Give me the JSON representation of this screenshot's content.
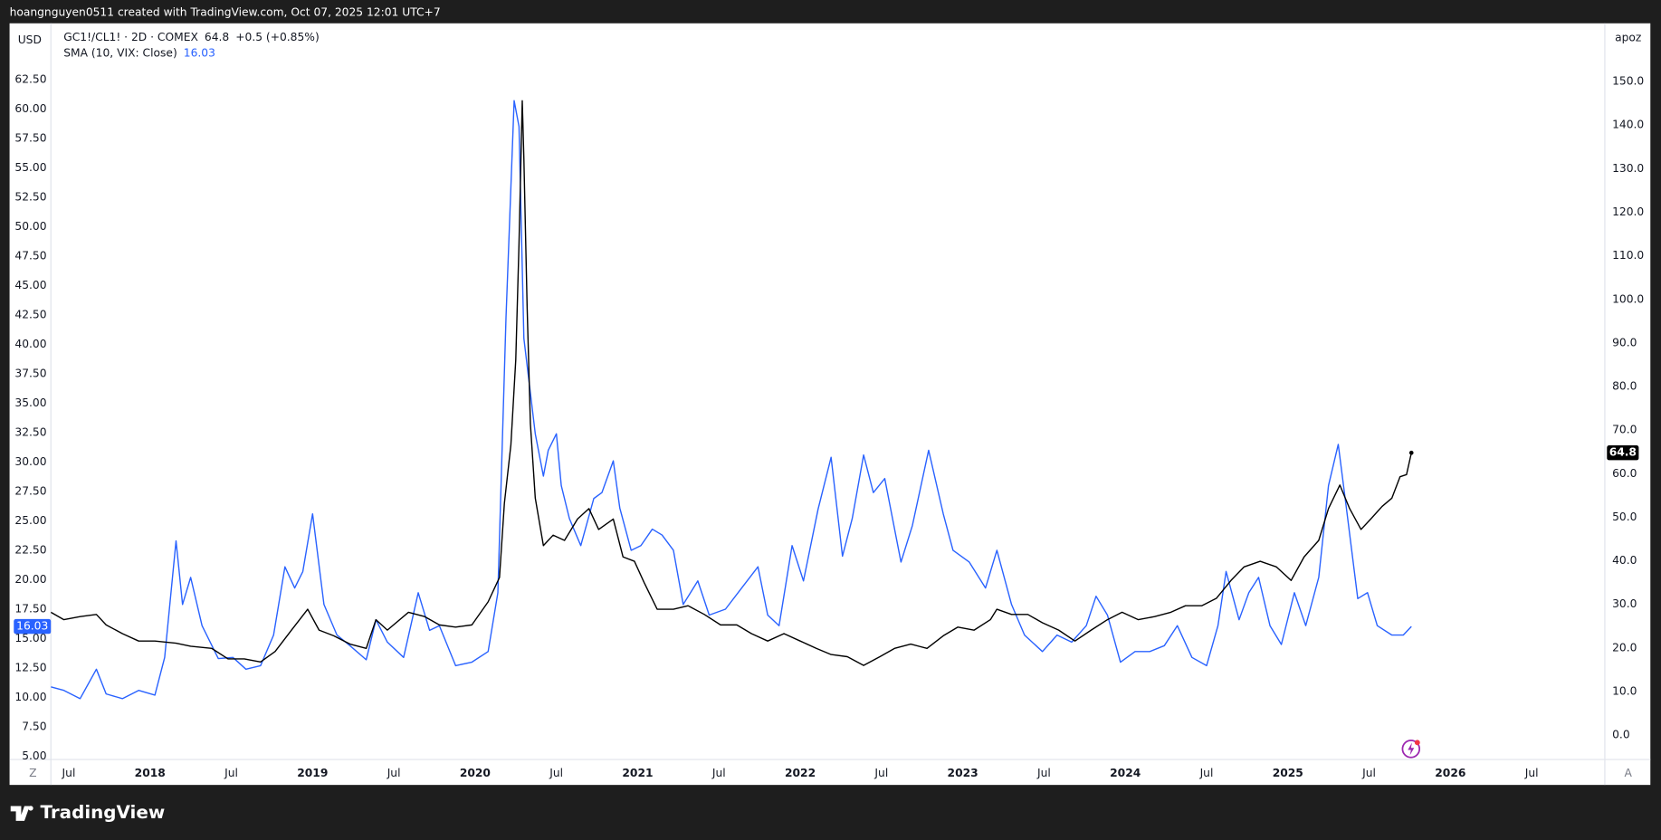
{
  "header": {
    "title": "hoangnguyen0511 created with TradingView.com, Oct 07, 2025 12:01 UTC+7"
  },
  "controls": {
    "left": "Z",
    "right": "A"
  },
  "footer": {
    "brand": "TradingView"
  },
  "chart_data": {
    "type": "line",
    "y_label": "USD",
    "y2_label": "apoz",
    "change_label": "+0.5 (+0.85%)",
    "grid": false,
    "xlim": [
      2017.39,
      2026.95
    ],
    "xticks": [
      {
        "value": 2017.5,
        "label": "Jul"
      },
      2018,
      {
        "value": 2018.5,
        "label": "Jul"
      },
      2019,
      {
        "value": 2019.5,
        "label": "Jul"
      },
      2020,
      {
        "value": 2020.5,
        "label": "Jul"
      },
      2021,
      {
        "value": 2021.5,
        "label": "Jul"
      },
      2022,
      {
        "value": 2022.5,
        "label": "Jul"
      },
      2023,
      {
        "value": 2023.5,
        "label": "Jul"
      },
      2024,
      {
        "value": 2024.5,
        "label": "Jul"
      },
      2025,
      {
        "value": 2025.5,
        "label": "Jul"
      },
      2026,
      {
        "value": 2026.5,
        "label": "Jul"
      }
    ],
    "ylim": [
      4.73,
      67.27
    ],
    "yticks": [
      {
        "value": 5,
        "label": "5.00"
      },
      {
        "value": 7.5,
        "label": "7.50"
      },
      {
        "value": 10,
        "label": "10.00"
      },
      {
        "value": 12.5,
        "label": "12.50"
      },
      {
        "value": 15,
        "label": "15.00"
      },
      {
        "value": 17.5,
        "label": "17.50"
      },
      {
        "value": 20,
        "label": "20.00"
      },
      {
        "value": 22.5,
        "label": "22.50"
      },
      {
        "value": 25,
        "label": "25.00"
      },
      {
        "value": 27.5,
        "label": "27.50"
      },
      {
        "value": 30,
        "label": "30.00"
      },
      {
        "value": 32.5,
        "label": "32.50"
      },
      {
        "value": 35,
        "label": "35.00"
      },
      {
        "value": 37.5,
        "label": "37.50"
      },
      {
        "value": 40,
        "label": "40.00"
      },
      {
        "value": 42.5,
        "label": "42.50"
      },
      {
        "value": 45,
        "label": "45.00"
      },
      {
        "value": 47.5,
        "label": "47.50"
      },
      {
        "value": 50,
        "label": "50.00"
      },
      {
        "value": 52.5,
        "label": "52.50"
      },
      {
        "value": 55,
        "label": "55.00"
      },
      {
        "value": 57.5,
        "label": "57.50"
      },
      {
        "value": 60,
        "label": "60.00"
      },
      {
        "value": 62.5,
        "label": "62.50"
      }
    ],
    "y2lim": [
      -5.59,
      163.37
    ],
    "y2ticks": [
      {
        "value": 0,
        "label": "0.0"
      },
      {
        "value": 10,
        "label": "10.0"
      },
      {
        "value": 20,
        "label": "20.0"
      },
      {
        "value": 30,
        "label": "30.0"
      },
      {
        "value": 40,
        "label": "40.0"
      },
      {
        "value": 50,
        "label": "50.0"
      },
      {
        "value": 60,
        "label": "60.0"
      },
      {
        "value": 70,
        "label": "70.0"
      },
      {
        "value": 80,
        "label": "80.0"
      },
      {
        "value": 90,
        "label": "90.0"
      },
      {
        "value": 100,
        "label": "100.0"
      },
      {
        "value": 110,
        "label": "110.0"
      },
      {
        "value": 120,
        "label": "120.0"
      },
      {
        "value": 130,
        "label": "130.0"
      },
      {
        "value": 140,
        "label": "140.0"
      },
      {
        "value": 150,
        "label": "150.0"
      }
    ],
    "series": [
      {
        "name": "SMA (10, VIX: Close)",
        "color": "#2962ff",
        "axis": "y",
        "x": [
          2017.39,
          2017.47,
          2017.57,
          2017.67,
          2017.73,
          2017.83,
          2017.93,
          2018.03,
          2018.09,
          2018.16,
          2018.2,
          2018.25,
          2018.32,
          2018.42,
          2018.51,
          2018.59,
          2018.68,
          2018.76,
          2018.83,
          2018.89,
          2018.94,
          2019.0,
          2019.07,
          2019.15,
          2019.23,
          2019.33,
          2019.39,
          2019.46,
          2019.56,
          2019.65,
          2019.72,
          2019.78,
          2019.88,
          2019.98,
          2020.08,
          2020.14,
          2020.19,
          2020.24,
          2020.27,
          2020.3,
          2020.37,
          2020.42,
          2020.45,
          2020.5,
          2020.53,
          2020.58,
          2020.65,
          2020.73,
          2020.78,
          2020.85,
          2020.89,
          2020.96,
          2021.02,
          2021.09,
          2021.15,
          2021.22,
          2021.28,
          2021.37,
          2021.44,
          2021.54,
          2021.64,
          2021.74,
          2021.8,
          2021.87,
          2021.95,
          2022.02,
          2022.11,
          2022.19,
          2022.26,
          2022.32,
          2022.39,
          2022.45,
          2022.52,
          2022.62,
          2022.69,
          2022.79,
          2022.88,
          2022.94,
          2023.04,
          2023.14,
          2023.21,
          2023.3,
          2023.38,
          2023.49,
          2023.58,
          2023.67,
          2023.76,
          2023.82,
          2023.89,
          2023.97,
          2024.06,
          2024.15,
          2024.24,
          2024.32,
          2024.41,
          2024.5,
          2024.57,
          2024.62,
          2024.7,
          2024.76,
          2024.82,
          2024.89,
          2024.96,
          2025.04,
          2025.11,
          2025.19,
          2025.25,
          2025.31,
          2025.36,
          2025.43,
          2025.49,
          2025.55,
          2025.64,
          2025.71,
          2025.76
        ],
        "values": [
          10.9,
          10.6,
          9.9,
          12.4,
          10.3,
          9.9,
          10.6,
          10.2,
          13.4,
          23.3,
          17.9,
          20.2,
          16.1,
          13.3,
          13.4,
          12.4,
          12.7,
          15.3,
          21.1,
          19.3,
          20.7,
          25.6,
          17.9,
          15.3,
          14.4,
          13.2,
          16.6,
          14.7,
          13.4,
          18.9,
          15.7,
          16.1,
          12.7,
          13.0,
          13.9,
          18.9,
          42.3,
          60.7,
          58.5,
          40.5,
          32.4,
          28.8,
          31.0,
          32.4,
          28.0,
          25.2,
          22.9,
          26.9,
          27.4,
          30.1,
          26.1,
          22.5,
          22.9,
          24.3,
          23.8,
          22.5,
          17.9,
          19.9,
          17.0,
          17.5,
          19.3,
          21.1,
          17.0,
          16.1,
          22.9,
          19.9,
          26.0,
          30.4,
          22.0,
          25.2,
          30.6,
          27.4,
          28.6,
          21.5,
          24.6,
          31.0,
          25.6,
          22.5,
          21.5,
          19.3,
          22.5,
          17.9,
          15.3,
          13.9,
          15.3,
          14.7,
          16.1,
          18.6,
          17.0,
          13.0,
          13.9,
          13.9,
          14.4,
          16.1,
          13.4,
          12.7,
          16.1,
          20.7,
          16.6,
          18.9,
          20.2,
          16.1,
          14.5,
          18.9,
          16.1,
          20.2,
          28.0,
          31.5,
          26.1,
          18.4,
          18.9,
          16.1,
          15.3,
          15.3,
          16.03
        ]
      },
      {
        "name": "GC1!/CL1! · 2D · COMEX",
        "color": "#000000",
        "axis": "y2",
        "x": [
          2017.39,
          2017.47,
          2017.57,
          2017.67,
          2017.73,
          2017.83,
          2017.93,
          2018.03,
          2018.16,
          2018.25,
          2018.38,
          2018.48,
          2018.58,
          2018.68,
          2018.77,
          2018.87,
          2018.97,
          2019.04,
          2019.13,
          2019.23,
          2019.33,
          2019.39,
          2019.46,
          2019.59,
          2019.69,
          2019.78,
          2019.88,
          2019.98,
          2020.08,
          2020.15,
          2020.18,
          2020.22,
          2020.25,
          2020.27,
          2020.29,
          2020.3,
          2020.32,
          2020.34,
          2020.37,
          2020.42,
          2020.48,
          2020.55,
          2020.63,
          2020.7,
          2020.76,
          2020.85,
          2020.91,
          2020.98,
          2021.04,
          2021.12,
          2021.22,
          2021.31,
          2021.41,
          2021.51,
          2021.61,
          2021.7,
          2021.8,
          2021.9,
          2022.0,
          2022.1,
          2022.19,
          2022.29,
          2022.39,
          2022.49,
          2022.58,
          2022.68,
          2022.78,
          2022.88,
          2022.97,
          2023.07,
          2023.17,
          2023.21,
          2023.3,
          2023.4,
          2023.49,
          2023.59,
          2023.69,
          2023.79,
          2023.89,
          2023.98,
          2024.08,
          2024.18,
          2024.28,
          2024.37,
          2024.47,
          2024.56,
          2024.65,
          2024.73,
          2024.83,
          2024.93,
          2025.02,
          2025.1,
          2025.19,
          2025.25,
          2025.32,
          2025.38,
          2025.45,
          2025.51,
          2025.58,
          2025.64,
          2025.69,
          2025.73,
          2025.76
        ],
        "values": [
          28.2,
          26.5,
          27.2,
          27.7,
          25.3,
          23.3,
          21.6,
          21.6,
          21.1,
          20.4,
          19.9,
          17.5,
          17.5,
          16.8,
          19.2,
          24.1,
          28.9,
          24.1,
          22.8,
          20.9,
          19.9,
          26.5,
          24.1,
          28.2,
          27.2,
          25.3,
          24.8,
          25.3,
          30.6,
          36.2,
          53.2,
          66.6,
          86.1,
          112.8,
          145.6,
          132.3,
          98.2,
          71.5,
          54.4,
          43.5,
          45.9,
          44.7,
          49.6,
          52.0,
          47.2,
          49.6,
          40.9,
          39.9,
          35.0,
          28.9,
          28.9,
          29.7,
          27.7,
          25.3,
          25.3,
          23.3,
          21.6,
          23.3,
          21.6,
          19.9,
          18.5,
          18.0,
          16.0,
          18.0,
          19.9,
          20.9,
          19.9,
          22.8,
          24.8,
          24.1,
          26.5,
          28.9,
          27.7,
          27.7,
          25.8,
          24.1,
          21.6,
          24.1,
          26.5,
          28.2,
          26.5,
          27.2,
          28.2,
          29.7,
          29.7,
          31.4,
          35.5,
          38.6,
          39.9,
          38.6,
          35.5,
          40.9,
          44.7,
          52.0,
          57.4,
          52.0,
          47.2,
          49.6,
          52.5,
          54.4,
          59.3,
          59.8,
          64.8
        ]
      }
    ]
  }
}
